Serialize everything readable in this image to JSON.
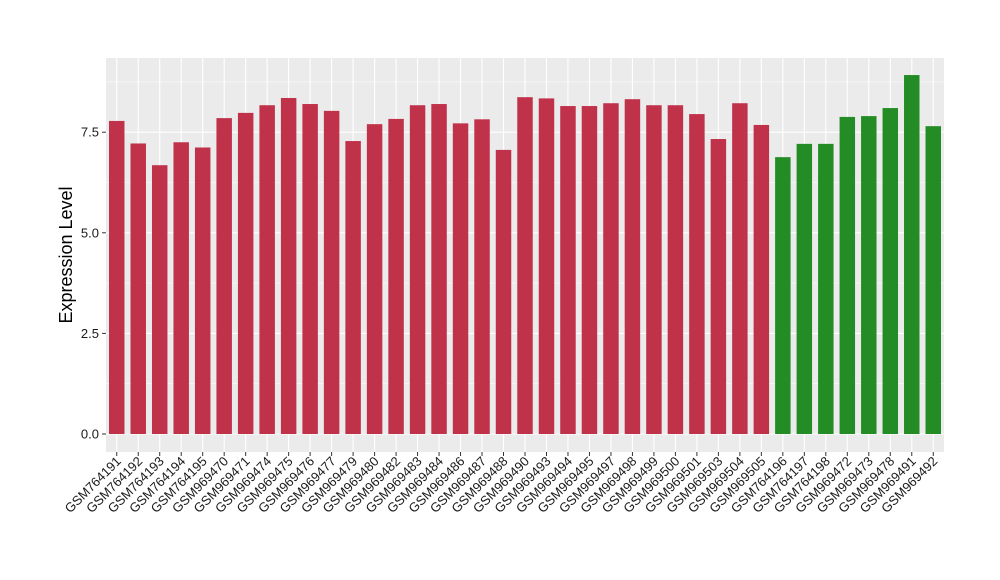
{
  "chart_data": {
    "type": "bar",
    "title": "",
    "xlabel": "",
    "ylabel": "Expression Level",
    "ylim": [
      0,
      9.3
    ],
    "yticks": [
      0.0,
      2.5,
      5.0,
      7.5
    ],
    "ytick_labels": [
      "0.0",
      "2.5",
      "5.0",
      "7.5"
    ],
    "grid": true,
    "legend": "none",
    "colors": {
      "group1": "#c0314a",
      "group2": "#248c24",
      "panel": "#ebebeb",
      "grid": "#ffffff"
    },
    "categories": [
      "GSM764191",
      "GSM764192",
      "GSM764193",
      "GSM764194",
      "GSM764195",
      "GSM969470",
      "GSM969471",
      "GSM969474",
      "GSM969475",
      "GSM969476",
      "GSM969477",
      "GSM969479",
      "GSM969480",
      "GSM969482",
      "GSM969483",
      "GSM969484",
      "GSM969486",
      "GSM969487",
      "GSM969488",
      "GSM969490",
      "GSM969493",
      "GSM969494",
      "GSM969495",
      "GSM969497",
      "GSM969498",
      "GSM969499",
      "GSM969500",
      "GSM969501",
      "GSM969503",
      "GSM969504",
      "GSM969505",
      "GSM764196",
      "GSM764197",
      "GSM764198",
      "GSM969472",
      "GSM969473",
      "GSM969478",
      "GSM969491",
      "GSM969492"
    ],
    "values": [
      7.78,
      7.22,
      6.68,
      7.25,
      7.12,
      7.85,
      7.98,
      8.17,
      8.35,
      8.2,
      8.03,
      7.28,
      7.7,
      7.83,
      8.17,
      8.2,
      7.72,
      7.82,
      7.06,
      8.37,
      8.34,
      8.15,
      8.15,
      8.22,
      8.32,
      8.17,
      8.17,
      7.95,
      7.33,
      8.22,
      7.68,
      6.88,
      7.21,
      7.21,
      7.88,
      7.9,
      8.1,
      8.92,
      7.65
    ],
    "groups": [
      "group1",
      "group1",
      "group1",
      "group1",
      "group1",
      "group1",
      "group1",
      "group1",
      "group1",
      "group1",
      "group1",
      "group1",
      "group1",
      "group1",
      "group1",
      "group1",
      "group1",
      "group1",
      "group1",
      "group1",
      "group1",
      "group1",
      "group1",
      "group1",
      "group1",
      "group1",
      "group1",
      "group1",
      "group1",
      "group1",
      "group1",
      "group2",
      "group2",
      "group2",
      "group2",
      "group2",
      "group2",
      "group2",
      "group2"
    ]
  }
}
